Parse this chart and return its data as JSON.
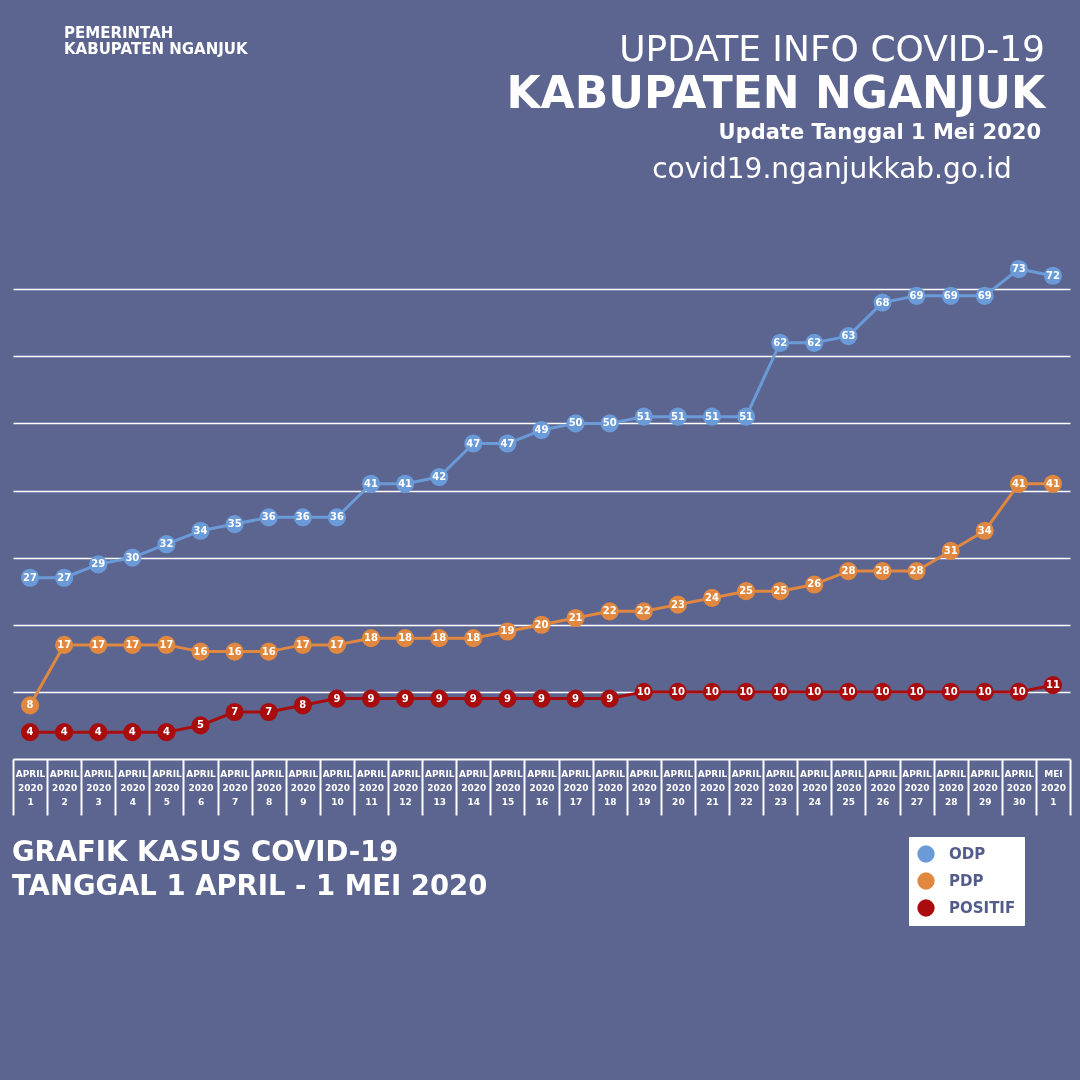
{
  "chart_data": {
    "type": "line",
    "title": "UPDATE INFO COVID-19",
    "subtitle": "KABUPATEN NGANJUK",
    "annotations": [
      "Update Tanggal 1 Mei 2020",
      "covid19.nganjukkab.go.id",
      "PEMERINTAH\nKABUPATEN NGANJUK",
      "GRAFIK KASUS COVID-19\nTANGGAL 1 APRIL - 1 MEI 2020"
    ],
    "categories": [
      "APRIL 2020 1",
      "APRIL 2020 2",
      "APRIL 2020 3",
      "APRIL 2020 4",
      "APRIL 2020 5",
      "APRIL 2020 6",
      "APRIL 2020 7",
      "APRIL 2020 8",
      "APRIL 2020 9",
      "APRIL 2020 10",
      "APRIL 2020 11",
      "APRIL 2020 12",
      "APRIL 2020 13",
      "APRIL 2020 14",
      "APRIL 2020 15",
      "APRIL 2020 16",
      "APRIL 2020 17",
      "APRIL 2020 18",
      "APRIL 2020 19",
      "APRIL 2020 20",
      "APRIL 2020 21",
      "APRIL 2020 22",
      "APRIL 2020 23",
      "APRIL 2020 24",
      "APRIL 2020 25",
      "APRIL 2020 26",
      "APRIL 2020 27",
      "APRIL 2020 28",
      "APRIL 2020 29",
      "APRIL 2020 30",
      "MEI 2020 1"
    ],
    "series": [
      {
        "name": "ODP",
        "color": "#6a9bd8",
        "values": [
          27,
          27,
          29,
          30,
          32,
          34,
          35,
          36,
          36,
          36,
          41,
          41,
          42,
          47,
          47,
          49,
          50,
          50,
          51,
          51,
          51,
          51,
          62,
          62,
          63,
          68,
          69,
          69,
          69,
          73,
          72
        ]
      },
      {
        "name": "PDP",
        "color": "#e0883f",
        "values": [
          8,
          17,
          17,
          17,
          17,
          16,
          16,
          16,
          17,
          17,
          18,
          18,
          18,
          18,
          19,
          20,
          21,
          22,
          22,
          23,
          24,
          25,
          25,
          26,
          28,
          28,
          28,
          31,
          34,
          41,
          41
        ]
      },
      {
        "name": "POSITIF",
        "color": "#a80c0c",
        "values": [
          4,
          4,
          4,
          4,
          4,
          5,
          7,
          7,
          8,
          9,
          9,
          9,
          9,
          9,
          9,
          9,
          9,
          9,
          10,
          10,
          10,
          10,
          10,
          10,
          10,
          10,
          10,
          10,
          10,
          10,
          11
        ]
      }
    ],
    "yticks": [
      {
        "value": 10,
        "label": null
      },
      {
        "value": 20,
        "label": null
      },
      {
        "value": 30,
        "label": null
      },
      {
        "value": 40,
        "label": null
      },
      {
        "value": 50,
        "label": null
      },
      {
        "value": 60,
        "label": null
      },
      {
        "value": 70,
        "label": null
      }
    ],
    "grid": "y",
    "legend": "bottom right",
    "marker": "circle",
    "line_style": "solid",
    "data_labels": true,
    "tick_labels": "x"
  }
}
